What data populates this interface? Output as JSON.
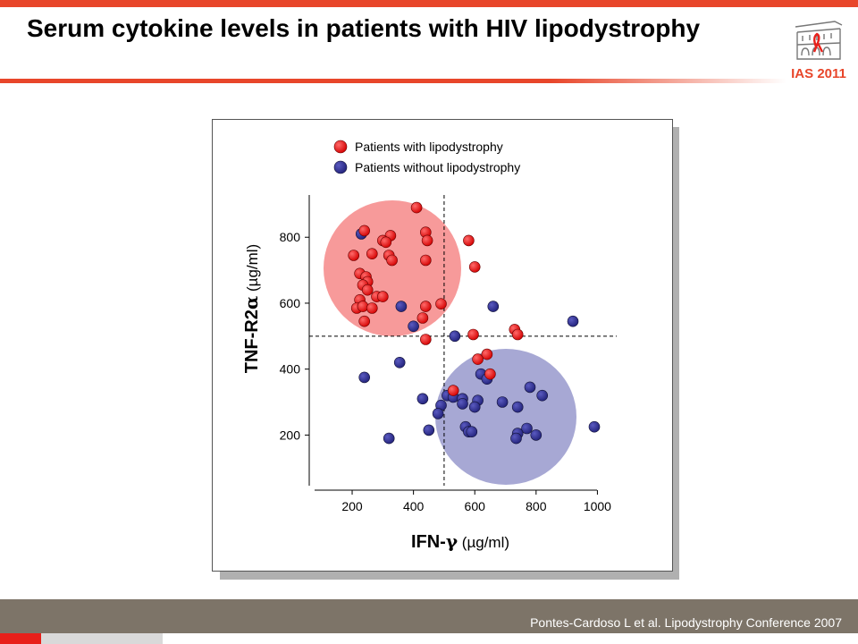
{
  "slide": {
    "title": "Serum cytokine levels in patients with HIV lipodystrophy",
    "footer": "Pontes-Cardoso L et al. Lipodystrophy Conference 2007",
    "logo_text": "IAS 2011",
    "accent_color": "#e8462a",
    "footer_color": "#7d7468"
  },
  "chart_data": {
    "type": "scatter",
    "xlabel": {
      "main": "IFN-",
      "symbol": "γ",
      "unit": " (µg/ml)"
    },
    "ylabel": {
      "main": "TNF-R2",
      "symbol": "α",
      "unit": " (µg/ml)"
    },
    "xticks": [
      200,
      400,
      600,
      800,
      1000
    ],
    "yticks": [
      200,
      400,
      600,
      800
    ],
    "xlim": [
      60,
      1060
    ],
    "ylim": [
      60,
      920
    ],
    "cutoff_x": 500,
    "cutoff_y": 500,
    "grid": false,
    "legend_position": "top",
    "series": [
      {
        "name": "Patients with lipodystrophy",
        "color": "#ee1111",
        "cluster_color": "#f79a9a",
        "points": [
          [
            410,
            890
          ],
          [
            240,
            820
          ],
          [
            440,
            815
          ],
          [
            325,
            805
          ],
          [
            300,
            790
          ],
          [
            310,
            785
          ],
          [
            445,
            790
          ],
          [
            580,
            790
          ],
          [
            205,
            745
          ],
          [
            265,
            750
          ],
          [
            320,
            745
          ],
          [
            330,
            730
          ],
          [
            440,
            730
          ],
          [
            600,
            710
          ],
          [
            225,
            690
          ],
          [
            245,
            680
          ],
          [
            250,
            665
          ],
          [
            235,
            655
          ],
          [
            250,
            640
          ],
          [
            280,
            620
          ],
          [
            300,
            620
          ],
          [
            225,
            610
          ],
          [
            215,
            585
          ],
          [
            235,
            590
          ],
          [
            265,
            585
          ],
          [
            440,
            590
          ],
          [
            490,
            598
          ],
          [
            430,
            555
          ],
          [
            240,
            545
          ],
          [
            730,
            520
          ],
          [
            740,
            505
          ],
          [
            595,
            505
          ],
          [
            440,
            490
          ],
          [
            640,
            445
          ],
          [
            610,
            430
          ],
          [
            650,
            385
          ],
          [
            530,
            335
          ]
        ]
      },
      {
        "name": "Patients without lipodystrophy",
        "color": "#33339a",
        "cluster_color": "#a7a8d4",
        "points": [
          [
            230,
            810
          ],
          [
            360,
            590
          ],
          [
            400,
            530
          ],
          [
            660,
            590
          ],
          [
            535,
            500
          ],
          [
            920,
            545
          ],
          [
            355,
            420
          ],
          [
            240,
            375
          ],
          [
            620,
            385
          ],
          [
            640,
            370
          ],
          [
            780,
            345
          ],
          [
            820,
            320
          ],
          [
            510,
            320
          ],
          [
            530,
            315
          ],
          [
            560,
            310
          ],
          [
            610,
            305
          ],
          [
            690,
            300
          ],
          [
            560,
            295
          ],
          [
            490,
            290
          ],
          [
            600,
            285
          ],
          [
            740,
            285
          ],
          [
            480,
            265
          ],
          [
            430,
            310
          ],
          [
            450,
            215
          ],
          [
            570,
            225
          ],
          [
            580,
            210
          ],
          [
            590,
            210
          ],
          [
            770,
            220
          ],
          [
            740,
            205
          ],
          [
            800,
            200
          ],
          [
            735,
            190
          ],
          [
            990,
            225
          ],
          [
            320,
            190
          ]
        ]
      }
    ]
  }
}
